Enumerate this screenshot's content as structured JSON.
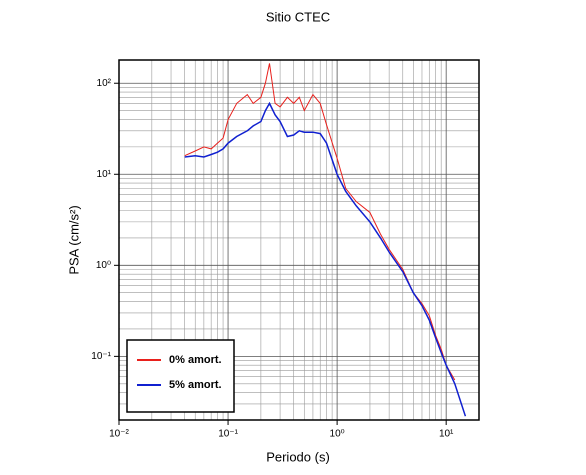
{
  "chart_data": {
    "type": "line",
    "title": "Sitio CTEC",
    "xlabel": "Periodo (s)",
    "ylabel": "PSA (cm/s²)",
    "xscale": "log",
    "yscale": "log",
    "grid": true,
    "legend": "lower left",
    "xlim": [
      0.01,
      20
    ],
    "ylim": [
      0.02,
      180
    ],
    "xticks": [
      {
        "value": 0.01,
        "label": "10⁻²"
      },
      {
        "value": 0.1,
        "label": "10⁻¹"
      },
      {
        "value": 1,
        "label": "10⁰"
      },
      {
        "value": 10,
        "label": "10¹"
      }
    ],
    "yticks": [
      {
        "value": 0.1,
        "label": "10⁻¹"
      },
      {
        "value": 1,
        "label": "10⁰"
      },
      {
        "value": 10,
        "label": "10¹"
      },
      {
        "value": 100,
        "label": "10²"
      }
    ],
    "xminorticks": [
      0.02,
      0.03,
      0.04,
      0.05,
      0.06,
      0.07,
      0.08,
      0.09,
      0.2,
      0.3,
      0.4,
      0.5,
      0.6,
      0.7,
      0.8,
      0.9,
      2,
      3,
      4,
      5,
      6,
      7,
      8,
      9
    ],
    "yminorticks": [
      0.03,
      0.04,
      0.05,
      0.06,
      0.07,
      0.08,
      0.09,
      0.2,
      0.3,
      0.4,
      0.5,
      0.6,
      0.7,
      0.8,
      0.9,
      2,
      3,
      4,
      5,
      6,
      7,
      8,
      9,
      20,
      30,
      40,
      50,
      60,
      70,
      80,
      90
    ],
    "x": [
      0.04,
      0.05,
      0.06,
      0.07,
      0.08,
      0.09,
      0.1,
      0.12,
      0.15,
      0.17,
      0.2,
      0.22,
      0.24,
      0.27,
      0.3,
      0.35,
      0.4,
      0.45,
      0.5,
      0.6,
      0.7,
      0.8,
      1,
      1.2,
      1.5,
      2,
      2.5,
      3,
      4,
      5,
      6,
      7,
      8,
      9,
      10,
      12,
      15
    ],
    "series": [
      {
        "name": "0% amort.",
        "color": "#e8201c",
        "values": [
          16,
          18,
          20,
          19,
          22,
          25,
          40,
          60,
          75,
          60,
          70,
          100,
          165,
          60,
          55,
          70,
          60,
          70,
          50,
          75,
          60,
          35,
          15,
          7,
          5,
          3.8,
          2.2,
          1.5,
          0.9,
          0.5,
          0.38,
          0.28,
          0.17,
          0.12,
          0.08,
          0.055,
          null
        ]
      },
      {
        "name": "5% amort.",
        "color": "#1020d0",
        "values": [
          15.5,
          16,
          15.5,
          16.5,
          17.5,
          19,
          22,
          26,
          30,
          34,
          38,
          50,
          60,
          45,
          38,
          26,
          27,
          30,
          29,
          29,
          28,
          22,
          10,
          6.5,
          4.5,
          3,
          2,
          1.4,
          0.85,
          0.5,
          0.36,
          0.25,
          0.16,
          0.11,
          0.08,
          0.05,
          0.022
        ]
      }
    ]
  }
}
